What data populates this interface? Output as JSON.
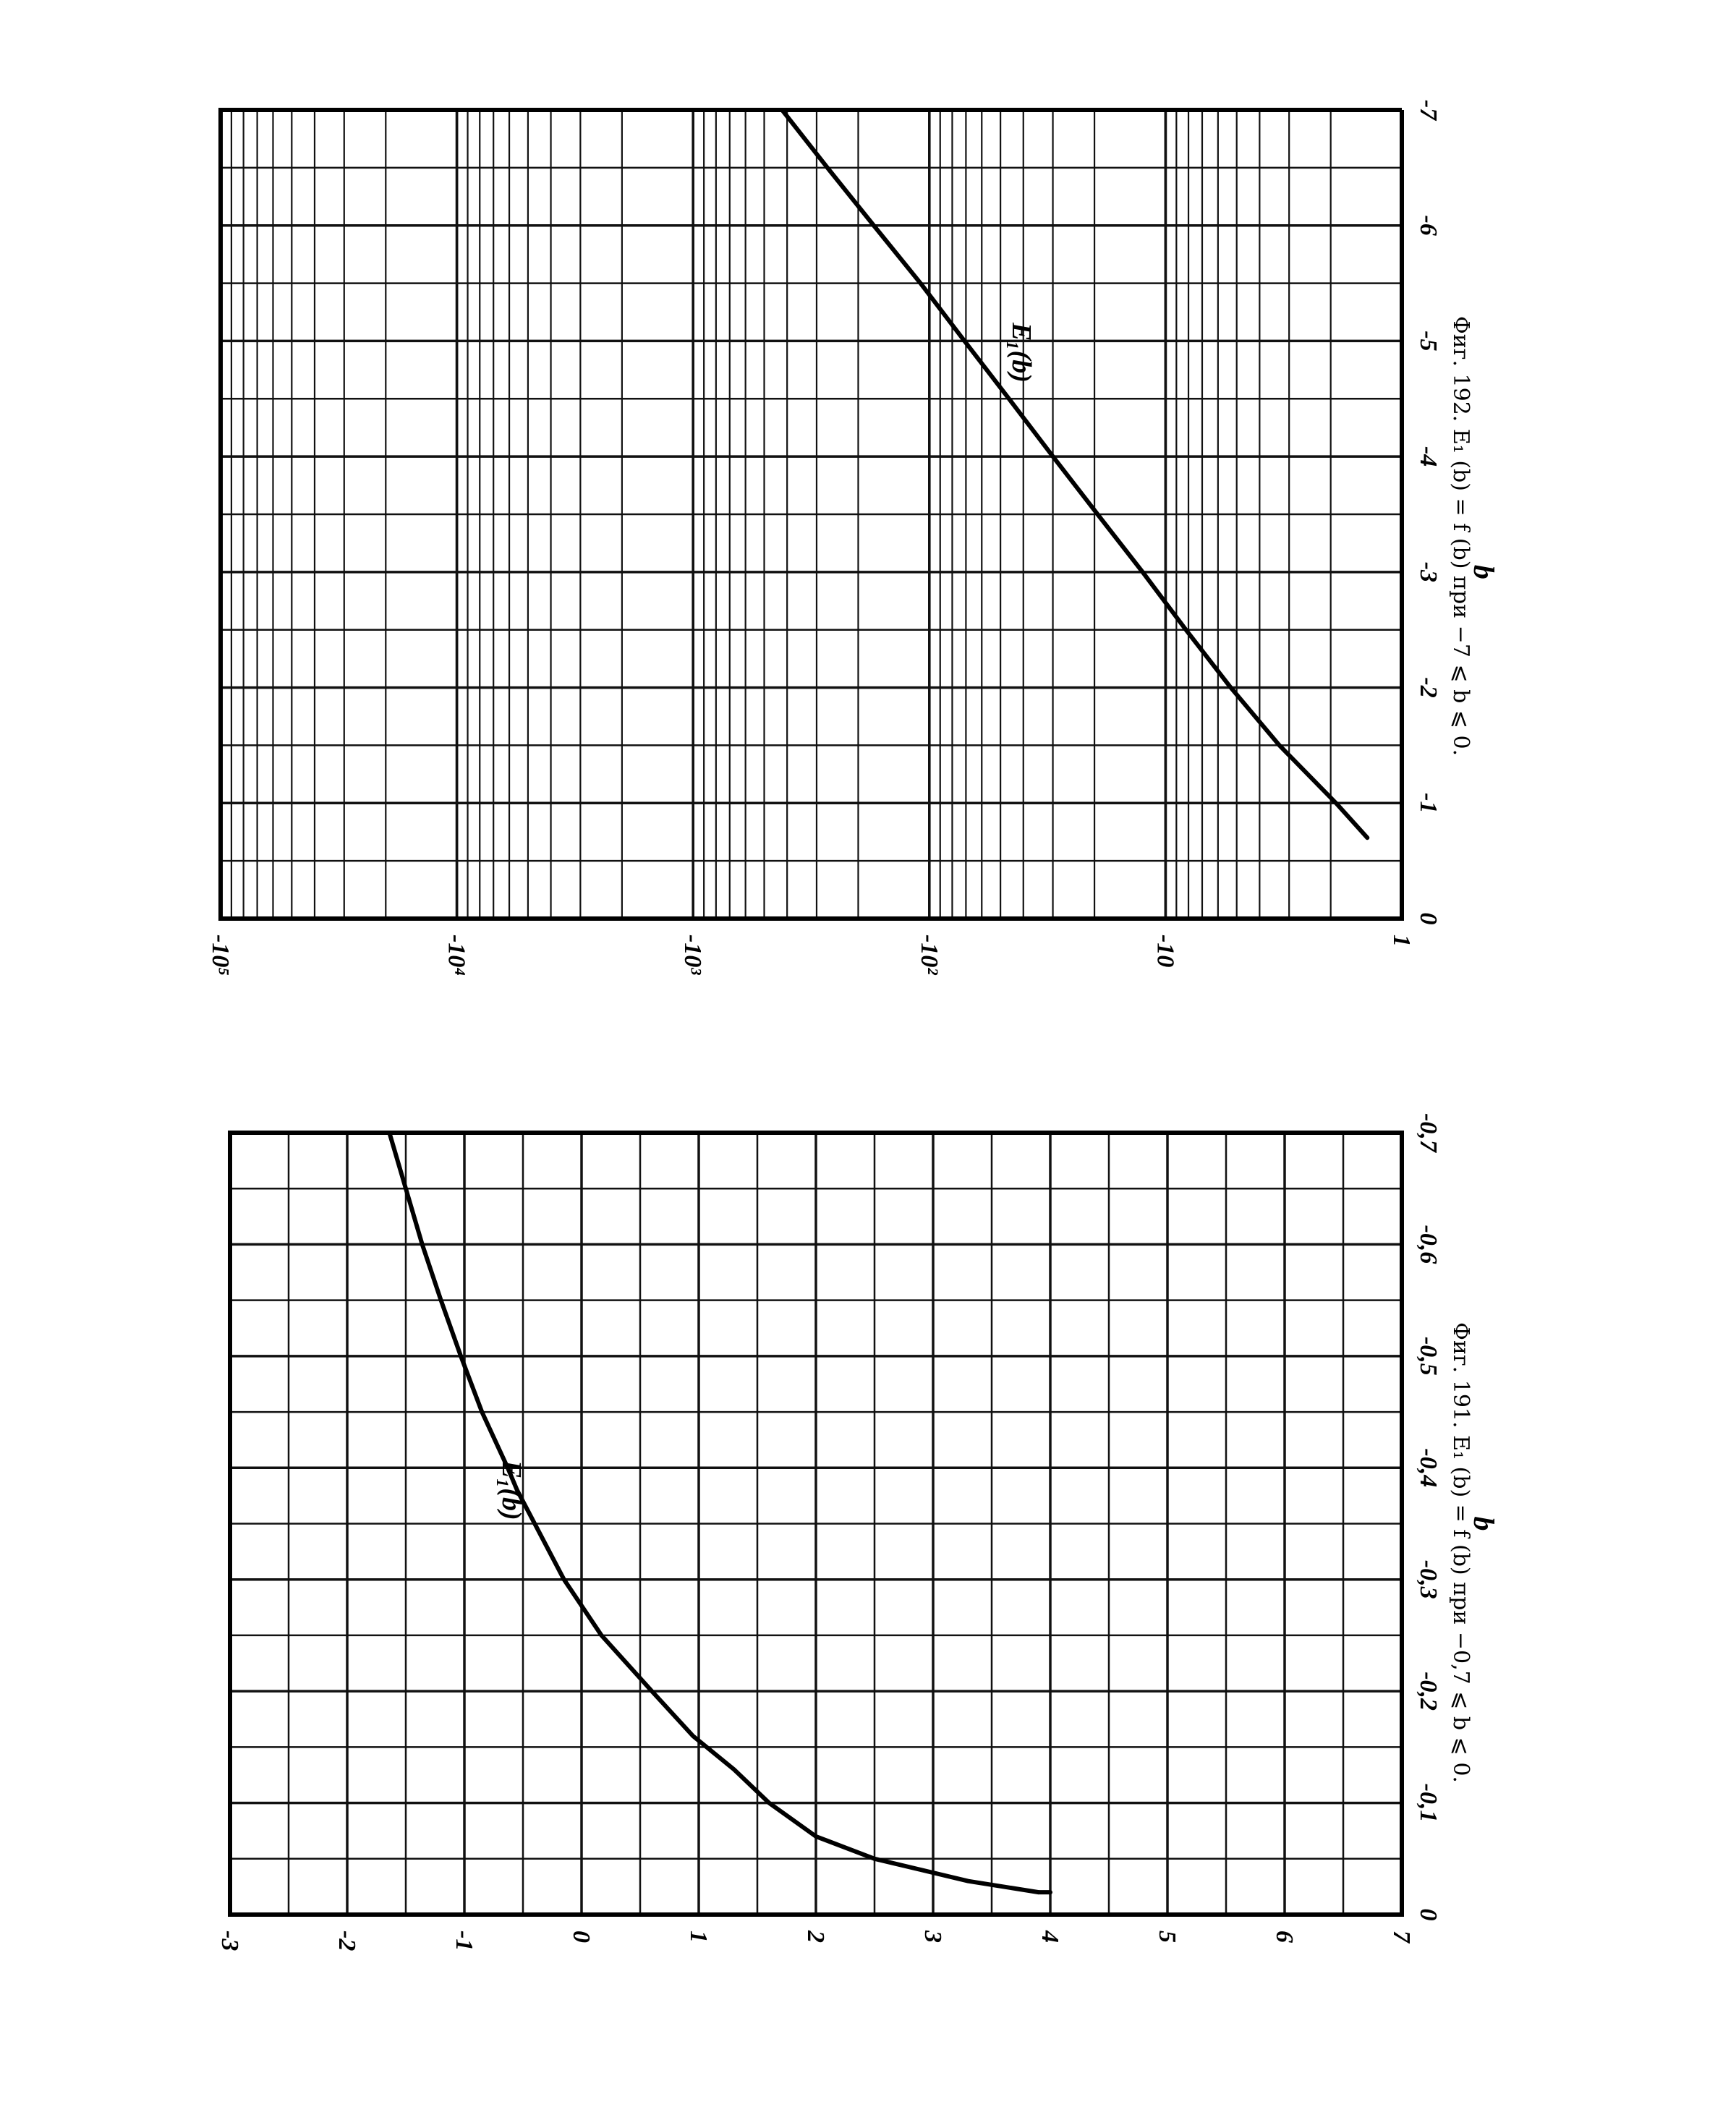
{
  "chart_data": [
    {
      "type": "line",
      "id": "fig191",
      "caption": "Фиг. 191. E₁ (b) = f (b) при −0,7 ⩽ b ⩽ 0.",
      "xlabel": "b",
      "ylabel": "",
      "xlim": [
        0,
        -0.7
      ],
      "ylim": [
        -3,
        7
      ],
      "x_ticks": [
        "0",
        "-0,1",
        "-0,2",
        "-0,3",
        "-0,4",
        "-0,5",
        "-0,6",
        "-0,7"
      ],
      "y_ticks": [
        "-3",
        "-2",
        "-1",
        "0",
        "1",
        "2",
        "3",
        "4",
        "5",
        "6",
        "7"
      ],
      "series": [
        {
          "name": "E₁(b)",
          "x": [
            -0.02,
            -0.03,
            -0.05,
            -0.07,
            -0.1,
            -0.13,
            -0.16,
            -0.2,
            -0.25,
            -0.3,
            -0.35,
            -0.38,
            -0.4,
            -0.45,
            -0.5,
            -0.55,
            -0.6,
            -0.65,
            -0.7
          ],
          "y": [
            3.9,
            3.3,
            2.5,
            2.0,
            1.6,
            1.3,
            0.95,
            0.6,
            0.17,
            -0.15,
            -0.4,
            -0.55,
            -0.63,
            -0.85,
            -1.03,
            -1.2,
            -1.36,
            -1.5,
            -1.64
          ]
        }
      ]
    },
    {
      "type": "line",
      "id": "fig192",
      "caption": "Фиг. 192. E₁ (b) = f (b) при −7 ⩽ b ⩽ 0.",
      "xlabel": "b",
      "ylabel": "",
      "xlim": [
        0,
        -7
      ],
      "y_scale": "log",
      "ylim": [
        1,
        100000
      ],
      "x_ticks": [
        "0",
        "-1",
        "-2",
        "-3",
        "-4",
        "-5",
        "-6",
        "-7"
      ],
      "y_ticks": [
        "1",
        "-10",
        "-10²",
        "-10³",
        "-10⁴",
        "-10⁵"
      ],
      "series": [
        {
          "name": "E₁(b)",
          "x": [
            -0.7,
            -1,
            -1.5,
            -2,
            -2.5,
            -3,
            -3.5,
            -4,
            -4.5,
            -5,
            -5.5,
            -6,
            -6.5,
            -7
          ],
          "y": [
            1.4,
            1.9,
            3.3,
            5.3,
            8.2,
            12.5,
            19.4,
            30,
            46,
            71,
            109,
            172,
            270,
            420
          ]
        }
      ]
    }
  ]
}
